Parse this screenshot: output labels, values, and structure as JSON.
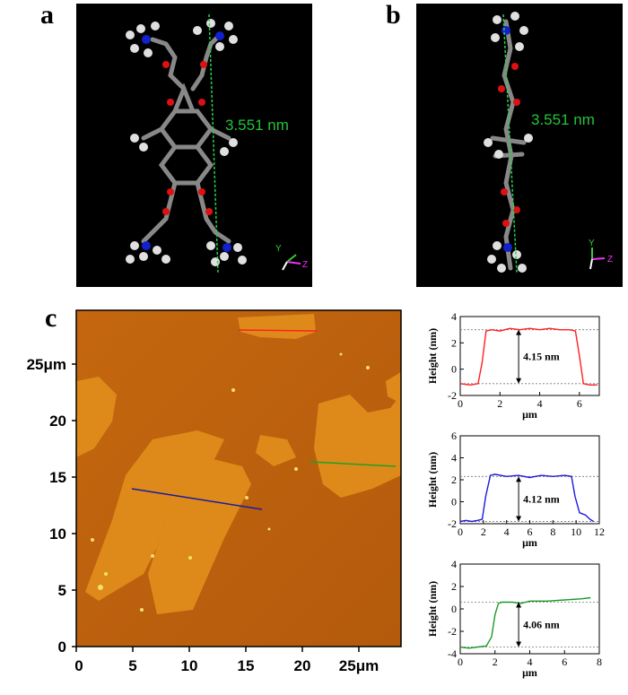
{
  "panels": {
    "a": {
      "letter": "a",
      "distance": "3.551 nm",
      "axes": {
        "y": "Y",
        "z": "Z"
      }
    },
    "b": {
      "letter": "b",
      "distance": "3.551 nm",
      "axes": {
        "y": "Y",
        "z": "Z"
      }
    },
    "c": {
      "letter": "c"
    }
  },
  "afm": {
    "y_ticks": [
      "0",
      "5",
      "10",
      "15",
      "20",
      "25μm"
    ],
    "x_ticks": [
      "0",
      "5",
      "10",
      "15",
      "20",
      "25μm"
    ],
    "line_colors": {
      "red": "#ff2020",
      "green": "#20a020",
      "blue": "#1a1aa0"
    }
  },
  "chart_data": [
    {
      "type": "line",
      "title": "",
      "xlabel": "μm",
      "ylabel": "Height (nm)",
      "xlim": [
        0,
        7
      ],
      "ylim": [
        -2,
        4
      ],
      "x_ticks": [
        "0",
        "2",
        "4",
        "6"
      ],
      "y_ticks": [
        "-2",
        "0",
        "2",
        "4"
      ],
      "color": "#ff2020",
      "annotation": "4.15 nm",
      "reference_lines": [
        3.0,
        -1.1
      ],
      "x": [
        0,
        0.5,
        0.9,
        1.1,
        1.3,
        1.6,
        2.0,
        2.5,
        3.0,
        3.5,
        4.0,
        4.5,
        5.0,
        5.5,
        5.8,
        6.0,
        6.2,
        6.5,
        6.9
      ],
      "y": [
        -1.1,
        -1.2,
        -1.1,
        0.5,
        2.9,
        3.0,
        2.9,
        3.1,
        3.0,
        3.1,
        3.0,
        3.1,
        3.0,
        3.0,
        2.9,
        1.0,
        -1.1,
        -1.2,
        -1.2
      ]
    },
    {
      "type": "line",
      "title": "",
      "xlabel": "μm",
      "ylabel": "Height (nm)",
      "xlim": [
        0,
        12
      ],
      "ylim": [
        -2,
        6
      ],
      "x_ticks": [
        "0",
        "2",
        "4",
        "6",
        "8",
        "10",
        "12"
      ],
      "y_ticks": [
        "-2",
        "0",
        "2",
        "4",
        "6"
      ],
      "color": "#1a1adc",
      "annotation": "4.12 nm",
      "reference_lines": [
        2.3,
        -1.8
      ],
      "x": [
        0,
        0.5,
        1.0,
        1.5,
        1.9,
        2.2,
        2.6,
        3.0,
        4.0,
        5.0,
        6.0,
        7.0,
        8.0,
        9.0,
        9.6,
        9.9,
        10.3,
        10.8,
        11.2,
        11.5
      ],
      "y": [
        -1.8,
        -1.7,
        -1.8,
        -1.7,
        -1.6,
        0.5,
        2.4,
        2.5,
        2.3,
        2.4,
        2.2,
        2.4,
        2.3,
        2.4,
        2.3,
        0.5,
        -1.0,
        -1.2,
        -1.6,
        -1.8
      ]
    },
    {
      "type": "line",
      "title": "",
      "xlabel": "μm",
      "ylabel": "Height (nm)",
      "xlim": [
        0,
        8
      ],
      "ylim": [
        -4,
        4
      ],
      "x_ticks": [
        "0",
        "2",
        "4",
        "6",
        "8"
      ],
      "y_ticks": [
        "-4",
        "-2",
        "0",
        "2",
        "4"
      ],
      "color": "#1a9a2a",
      "annotation": "4.06 nm",
      "reference_lines": [
        0.6,
        -3.4
      ],
      "x": [
        0,
        0.5,
        1.0,
        1.5,
        1.8,
        2.0,
        2.2,
        2.4,
        3.0,
        3.5,
        4.0,
        5.0,
        6.0,
        7.0,
        7.5
      ],
      "y": [
        -3.4,
        -3.5,
        -3.4,
        -3.3,
        -2.5,
        -0.5,
        0.5,
        0.6,
        0.6,
        0.5,
        0.7,
        0.7,
        0.8,
        0.9,
        1.0
      ]
    }
  ]
}
